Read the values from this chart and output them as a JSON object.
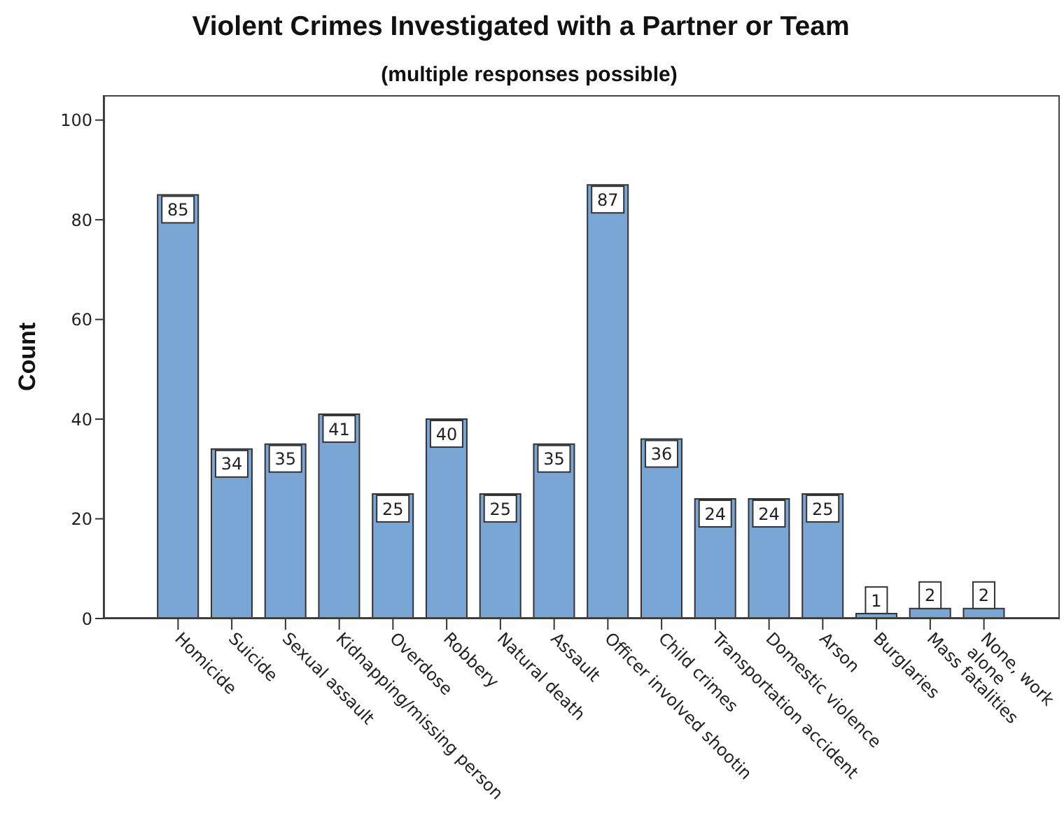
{
  "chart_data": {
    "type": "bar",
    "title": "Violent Crimes Investigated with a Partner or Team",
    "subtitle": "(multiple responses possible)",
    "ylabel": "Count",
    "categories": [
      "Homicide",
      "Suicide",
      "Sexual assault",
      "Kidnapping/missing person",
      "Overdose",
      "Robbery",
      "Natural death",
      "Assault",
      "Officer involved shootin",
      "Child crimes",
      "Transportation accident",
      "Domestic violence",
      "Arson",
      "Burglaries",
      "Mass fatalities",
      "None, work\nalone"
    ],
    "values": [
      85,
      34,
      35,
      41,
      25,
      40,
      25,
      35,
      87,
      36,
      24,
      24,
      25,
      1,
      2,
      2
    ],
    "color": "#7aa6d6",
    "ylim": [
      0,
      105
    ],
    "yticks": [
      0,
      20,
      40,
      60,
      80,
      100
    ],
    "data_labels": true
  }
}
